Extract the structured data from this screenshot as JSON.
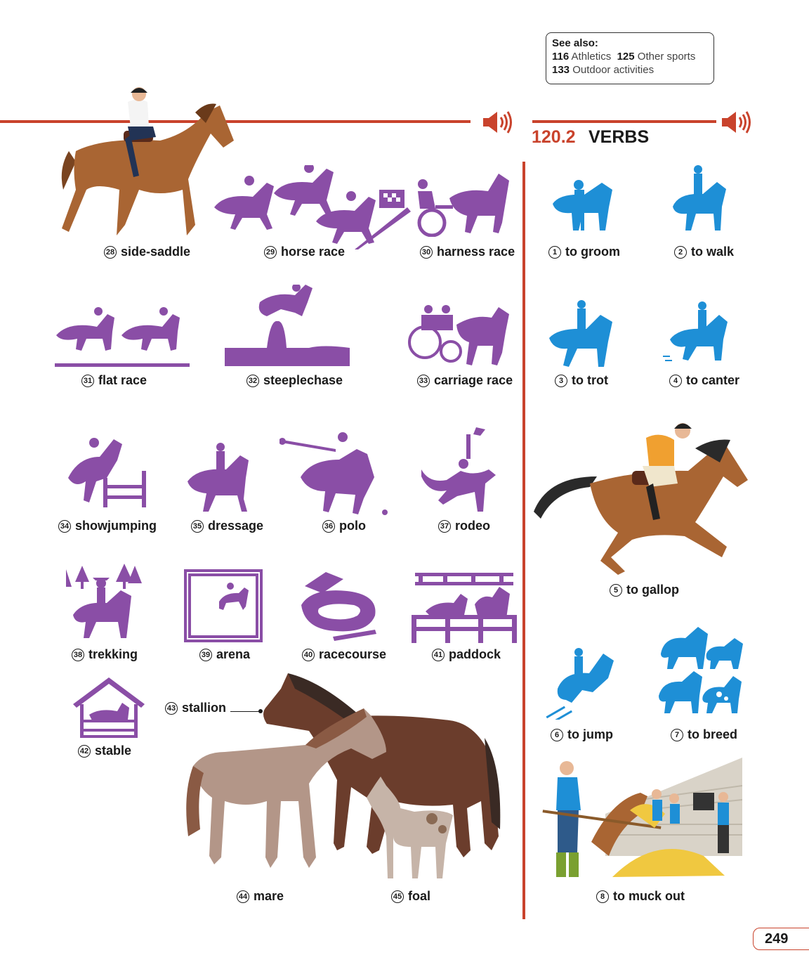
{
  "see_also": {
    "title": "See also:",
    "items": [
      {
        "num": "116",
        "text": "Athletics"
      },
      {
        "num": "125",
        "text": "Other sports"
      },
      {
        "num": "133",
        "text": "Outdoor activities"
      }
    ]
  },
  "section": {
    "number": "120.2",
    "title": "VERBS"
  },
  "left_items": [
    {
      "num": "28",
      "label": "side-saddle"
    },
    {
      "num": "29",
      "label": "horse race"
    },
    {
      "num": "30",
      "label": "harness race"
    },
    {
      "num": "31",
      "label": "flat race"
    },
    {
      "num": "32",
      "label": "steeplechase"
    },
    {
      "num": "33",
      "label": "carriage race"
    },
    {
      "num": "34",
      "label": "showjumping"
    },
    {
      "num": "35",
      "label": "dressage"
    },
    {
      "num": "36",
      "label": "polo"
    },
    {
      "num": "37",
      "label": "rodeo"
    },
    {
      "num": "38",
      "label": "trekking"
    },
    {
      "num": "39",
      "label": "arena"
    },
    {
      "num": "40",
      "label": "racecourse"
    },
    {
      "num": "41",
      "label": "paddock"
    },
    {
      "num": "42",
      "label": "stable"
    },
    {
      "num": "43",
      "label": "stallion"
    },
    {
      "num": "44",
      "label": "mare"
    },
    {
      "num": "45",
      "label": "foal"
    }
  ],
  "verbs": [
    {
      "num": "1",
      "label": "to groom"
    },
    {
      "num": "2",
      "label": "to walk"
    },
    {
      "num": "3",
      "label": "to trot"
    },
    {
      "num": "4",
      "label": "to canter"
    },
    {
      "num": "5",
      "label": "to gallop"
    },
    {
      "num": "6",
      "label": "to jump"
    },
    {
      "num": "7",
      "label": "to breed"
    },
    {
      "num": "8",
      "label": "to muck out"
    }
  ],
  "page_number": "249",
  "colors": {
    "accent": "#c9432c",
    "purple": "#8a4ea6",
    "blue": "#1e8fd6",
    "brown": "#a0602e"
  },
  "icons": [
    "speaker-icon"
  ]
}
